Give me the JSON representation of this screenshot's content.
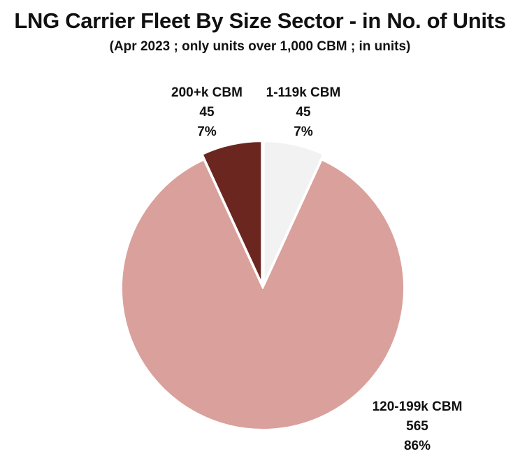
{
  "chart_data": {
    "type": "pie",
    "title": "LNG Carrier Fleet By Size Sector - in No. of Units",
    "subtitle": "(Apr 2023 ; only units over 1,000 CBM ; in units)",
    "slices": [
      {
        "label": "1-119k CBM",
        "value": 45,
        "value_text": "45",
        "percent_text": "7%",
        "color": "#f2f2f2",
        "exploded": true
      },
      {
        "label": "120-199k CBM",
        "value": 565,
        "value_text": "565",
        "percent_text": "86%",
        "color": "#daa09c",
        "exploded": false
      },
      {
        "label": "200+k CBM",
        "value": 45,
        "value_text": "45",
        "percent_text": "7%",
        "color": "#6b2620",
        "exploded": true
      }
    ],
    "start_angle": "12 o'clock",
    "direction": "clockwise",
    "legend": "none"
  }
}
